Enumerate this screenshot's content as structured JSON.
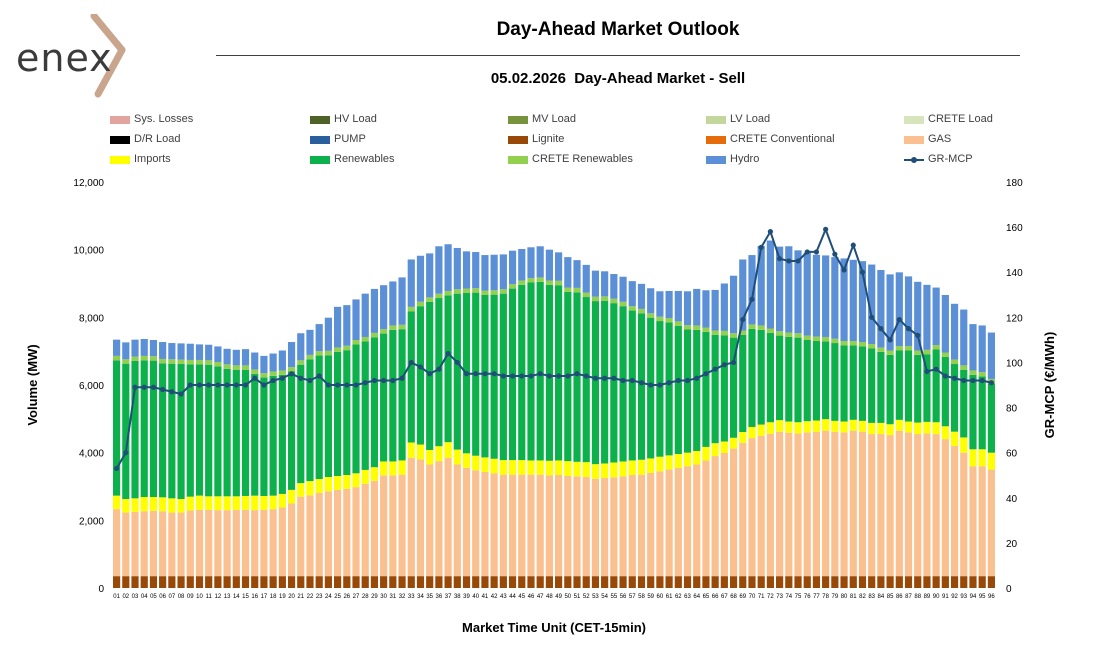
{
  "header": {
    "logo_text": "enex",
    "title": "Day-Ahead Market Outlook",
    "subtitle": "05.02.2026  Day-Ahead Market - Sell"
  },
  "chart_data": {
    "type": "bar",
    "stacked": true,
    "xlabel": "Market Time Unit (CET-15min)",
    "ylabel": "Volume (MW)",
    "y2label": "GR-MCP (€/MWh)",
    "ylim": [
      0,
      12000
    ],
    "y2lim": [
      0,
      180
    ],
    "yticks": [
      "0",
      "2,000",
      "4,000",
      "6,000",
      "8,000",
      "10,000",
      "12,000"
    ],
    "y2ticks": [
      "0",
      "20",
      "40",
      "60",
      "80",
      "100",
      "120",
      "140",
      "160",
      "180"
    ],
    "categories": [
      "01",
      "02",
      "03",
      "04",
      "05",
      "06",
      "07",
      "08",
      "09",
      "10",
      "11",
      "12",
      "13",
      "14",
      "15",
      "16",
      "17",
      "18",
      "19",
      "20",
      "21",
      "22",
      "23",
      "24",
      "25",
      "26",
      "27",
      "28",
      "29",
      "30",
      "31",
      "32",
      "33",
      "34",
      "35",
      "36",
      "37",
      "38",
      "39",
      "40",
      "41",
      "42",
      "43",
      "44",
      "45",
      "46",
      "47",
      "48",
      "49",
      "50",
      "51",
      "52",
      "53",
      "54",
      "55",
      "56",
      "57",
      "58",
      "59",
      "60",
      "61",
      "62",
      "63",
      "64",
      "65",
      "66",
      "67",
      "68",
      "69",
      "70",
      "71",
      "72",
      "73",
      "74",
      "75",
      "76",
      "77",
      "78",
      "79",
      "80",
      "81",
      "82",
      "83",
      "84",
      "85",
      "86",
      "87",
      "88",
      "89",
      "90",
      "91",
      "92",
      "93",
      "94",
      "95",
      "96"
    ],
    "legend": [
      {
        "name": "Sys. Losses",
        "color": "#e3a39f"
      },
      {
        "name": "HV Load",
        "color": "#4f6228"
      },
      {
        "name": "MV Load",
        "color": "#77933c"
      },
      {
        "name": "LV Load",
        "color": "#c3d69b"
      },
      {
        "name": "CRETE Load",
        "color": "#d7e4bd"
      },
      {
        "name": "D/R Load",
        "color": "#000000"
      },
      {
        "name": "PUMP",
        "color": "#2a5f9e"
      },
      {
        "name": "Lignite",
        "color": "#984807"
      },
      {
        "name": "CRETE Conventional",
        "color": "#e46c0a"
      },
      {
        "name": "GAS",
        "color": "#fac090"
      },
      {
        "name": "Imports",
        "color": "#ffff00"
      },
      {
        "name": "Renewables",
        "color": "#0db14b"
      },
      {
        "name": "CRETE Renewables",
        "color": "#92d050"
      },
      {
        "name": "Hydro",
        "color": "#5b8fd6"
      },
      {
        "name": "GR-MCP",
        "color": "#1f4e79"
      }
    ],
    "series": [
      {
        "name": "Lignite",
        "color": "#984807",
        "values": [
          350,
          350,
          350,
          350,
          350,
          350,
          350,
          350,
          350,
          350,
          350,
          350,
          350,
          350,
          350,
          350,
          350,
          350,
          350,
          350,
          350,
          350,
          350,
          350,
          350,
          350,
          350,
          350,
          350,
          350,
          350,
          350,
          350,
          350,
          350,
          350,
          350,
          350,
          350,
          350,
          350,
          350,
          350,
          350,
          350,
          350,
          350,
          350,
          350,
          350,
          350,
          350,
          350,
          350,
          350,
          350,
          350,
          350,
          350,
          350,
          350,
          350,
          350,
          350,
          350,
          350,
          350,
          350,
          350,
          350,
          350,
          350,
          350,
          350,
          350,
          350,
          350,
          350,
          350,
          350,
          350,
          350,
          350,
          350,
          350,
          350,
          350,
          350,
          350,
          350,
          350,
          350,
          350,
          350,
          350,
          350
        ]
      },
      {
        "name": "GAS",
        "color": "#fac090",
        "values": [
          1980,
          1880,
          1900,
          1920,
          1930,
          1920,
          1880,
          1880,
          1940,
          1960,
          1960,
          1950,
          1950,
          1960,
          1960,
          1950,
          1960,
          1980,
          2030,
          2150,
          2350,
          2390,
          2460,
          2510,
          2550,
          2580,
          2630,
          2730,
          2820,
          2980,
          2980,
          3000,
          3500,
          3450,
          3300,
          3400,
          3500,
          3300,
          3200,
          3130,
          3080,
          3040,
          3000,
          3000,
          3000,
          3000,
          3000,
          2980,
          2990,
          2960,
          2950,
          2930,
          2880,
          2900,
          2920,
          2950,
          2990,
          3000,
          3050,
          3100,
          3150,
          3200,
          3250,
          3300,
          3420,
          3550,
          3640,
          3770,
          3940,
          4080,
          4150,
          4210,
          4270,
          4240,
          4220,
          4250,
          4270,
          4300,
          4270,
          4250,
          4300,
          4270,
          4200,
          4200,
          4170,
          4300,
          4250,
          4200,
          4220,
          4200,
          4050,
          3850,
          3650,
          3250,
          3250,
          3150
        ]
      },
      {
        "name": "Imports",
        "color": "#ffff00",
        "values": [
          400,
          400,
          400,
          420,
          410,
          410,
          420,
          400,
          410,
          420,
          400,
          410,
          410,
          400,
          410,
          430,
          410,
          400,
          400,
          400,
          400,
          420,
          410,
          420,
          410,
          410,
          410,
          410,
          400,
          410,
          410,
          420,
          450,
          440,
          430,
          440,
          460,
          440,
          430,
          430,
          430,
          430,
          430,
          430,
          430,
          420,
          420,
          430,
          430,
          440,
          430,
          440,
          430,
          430,
          440,
          440,
          430,
          440,
          430,
          430,
          420,
          410,
          400,
          400,
          400,
          380,
          340,
          320,
          320,
          330,
          330,
          340,
          340,
          330,
          330,
          330,
          330,
          340,
          320,
          320,
          320,
          320,
          330,
          330,
          320,
          320,
          320,
          340,
          340,
          350,
          380,
          420,
          450,
          500,
          500,
          500
        ]
      },
      {
        "name": "Renewables",
        "color": "#0db14b",
        "values": [
          4000,
          4000,
          4060,
          4040,
          4030,
          3960,
          3980,
          3990,
          3910,
          3880,
          3890,
          3840,
          3770,
          3740,
          3730,
          3600,
          3500,
          3540,
          3520,
          3500,
          3500,
          3600,
          3650,
          3600,
          3670,
          3690,
          3810,
          3800,
          3840,
          3780,
          3890,
          3880,
          3880,
          4090,
          4380,
          4380,
          4340,
          4610,
          4740,
          4820,
          4800,
          4850,
          4920,
          5070,
          5180,
          5260,
          5280,
          5200,
          5180,
          5000,
          5010,
          4880,
          4820,
          4810,
          4710,
          4590,
          4430,
          4330,
          4160,
          4010,
          3930,
          3790,
          3640,
          3580,
          3400,
          3200,
          3140,
          2960,
          2870,
          2900,
          2800,
          2640,
          2500,
          2500,
          2500,
          2400,
          2350,
          2300,
          2300,
          2250,
          2200,
          2200,
          2200,
          2100,
          2050,
          2050,
          2100,
          2000,
          2000,
          2150,
          2050,
          2000,
          2000,
          2200,
          2150,
          2050
        ]
      },
      {
        "name": "CRETE Renewables",
        "color": "#92d050",
        "values": [
          130,
          130,
          130,
          130,
          130,
          130,
          130,
          130,
          130,
          130,
          130,
          130,
          130,
          130,
          130,
          130,
          130,
          130,
          130,
          130,
          130,
          130,
          130,
          130,
          130,
          130,
          130,
          130,
          130,
          130,
          130,
          130,
          130,
          130,
          130,
          130,
          130,
          130,
          130,
          130,
          130,
          130,
          130,
          130,
          130,
          130,
          130,
          130,
          130,
          130,
          130,
          130,
          130,
          130,
          130,
          130,
          130,
          130,
          130,
          130,
          130,
          130,
          130,
          130,
          130,
          130,
          130,
          130,
          130,
          130,
          130,
          130,
          130,
          130,
          130,
          130,
          130,
          130,
          130,
          130,
          130,
          130,
          130,
          130,
          130,
          130,
          130,
          130,
          130,
          130,
          130,
          130,
          130,
          130,
          130,
          130
        ]
      },
      {
        "name": "Hydro",
        "color": "#5b8fd6",
        "values": [
          480,
          500,
          500,
          500,
          480,
          500,
          480,
          480,
          480,
          460,
          460,
          460,
          460,
          460,
          480,
          500,
          510,
          530,
          590,
          740,
          800,
          740,
          800,
          980,
          1200,
          1200,
          1200,
          1280,
          1300,
          1300,
          1300,
          1400,
          1400,
          1360,
          1300,
          1400,
          1380,
          1220,
          1100,
          1070,
          1050,
          1050,
          1030,
          990,
          930,
          910,
          920,
          910,
          840,
          900,
          820,
          820,
          770,
          740,
          730,
          740,
          740,
          740,
          740,
          750,
          800,
          900,
          1000,
          1080,
          1100,
          1200,
          1400,
          1700,
          2100,
          2050,
          2350,
          2600,
          2500,
          2550,
          2450,
          2450,
          2420,
          2410,
          2410,
          2440,
          2400,
          2390,
          2350,
          2290,
          2250,
          2180,
          2060,
          2030,
          1920,
          1700,
          1700,
          1650,
          1650,
          1370,
          1380,
          1370
        ]
      }
    ],
    "line_series": {
      "name": "GR-MCP",
      "axis": "right",
      "color": "#1f4e79",
      "values": [
        53,
        60,
        89,
        89,
        89,
        88,
        87,
        86,
        90,
        90,
        90,
        90,
        90,
        90,
        90,
        93,
        90,
        92,
        93,
        95,
        93,
        92,
        94,
        90,
        90,
        90,
        90,
        91,
        92,
        92,
        92,
        93,
        100,
        98,
        95,
        97,
        104,
        100,
        95,
        95,
        95,
        95,
        94,
        94,
        94,
        94,
        95,
        94,
        94,
        94,
        95,
        94,
        93,
        93,
        93,
        92,
        92,
        91,
        90,
        90,
        91,
        92,
        92,
        93,
        95,
        97,
        99,
        100,
        119,
        128,
        151,
        158,
        146,
        145,
        145,
        149,
        149,
        159,
        148,
        141,
        152,
        140,
        120,
        115,
        110,
        119,
        115,
        112,
        96,
        97,
        94,
        93,
        92,
        92,
        92,
        91
      ]
    }
  }
}
